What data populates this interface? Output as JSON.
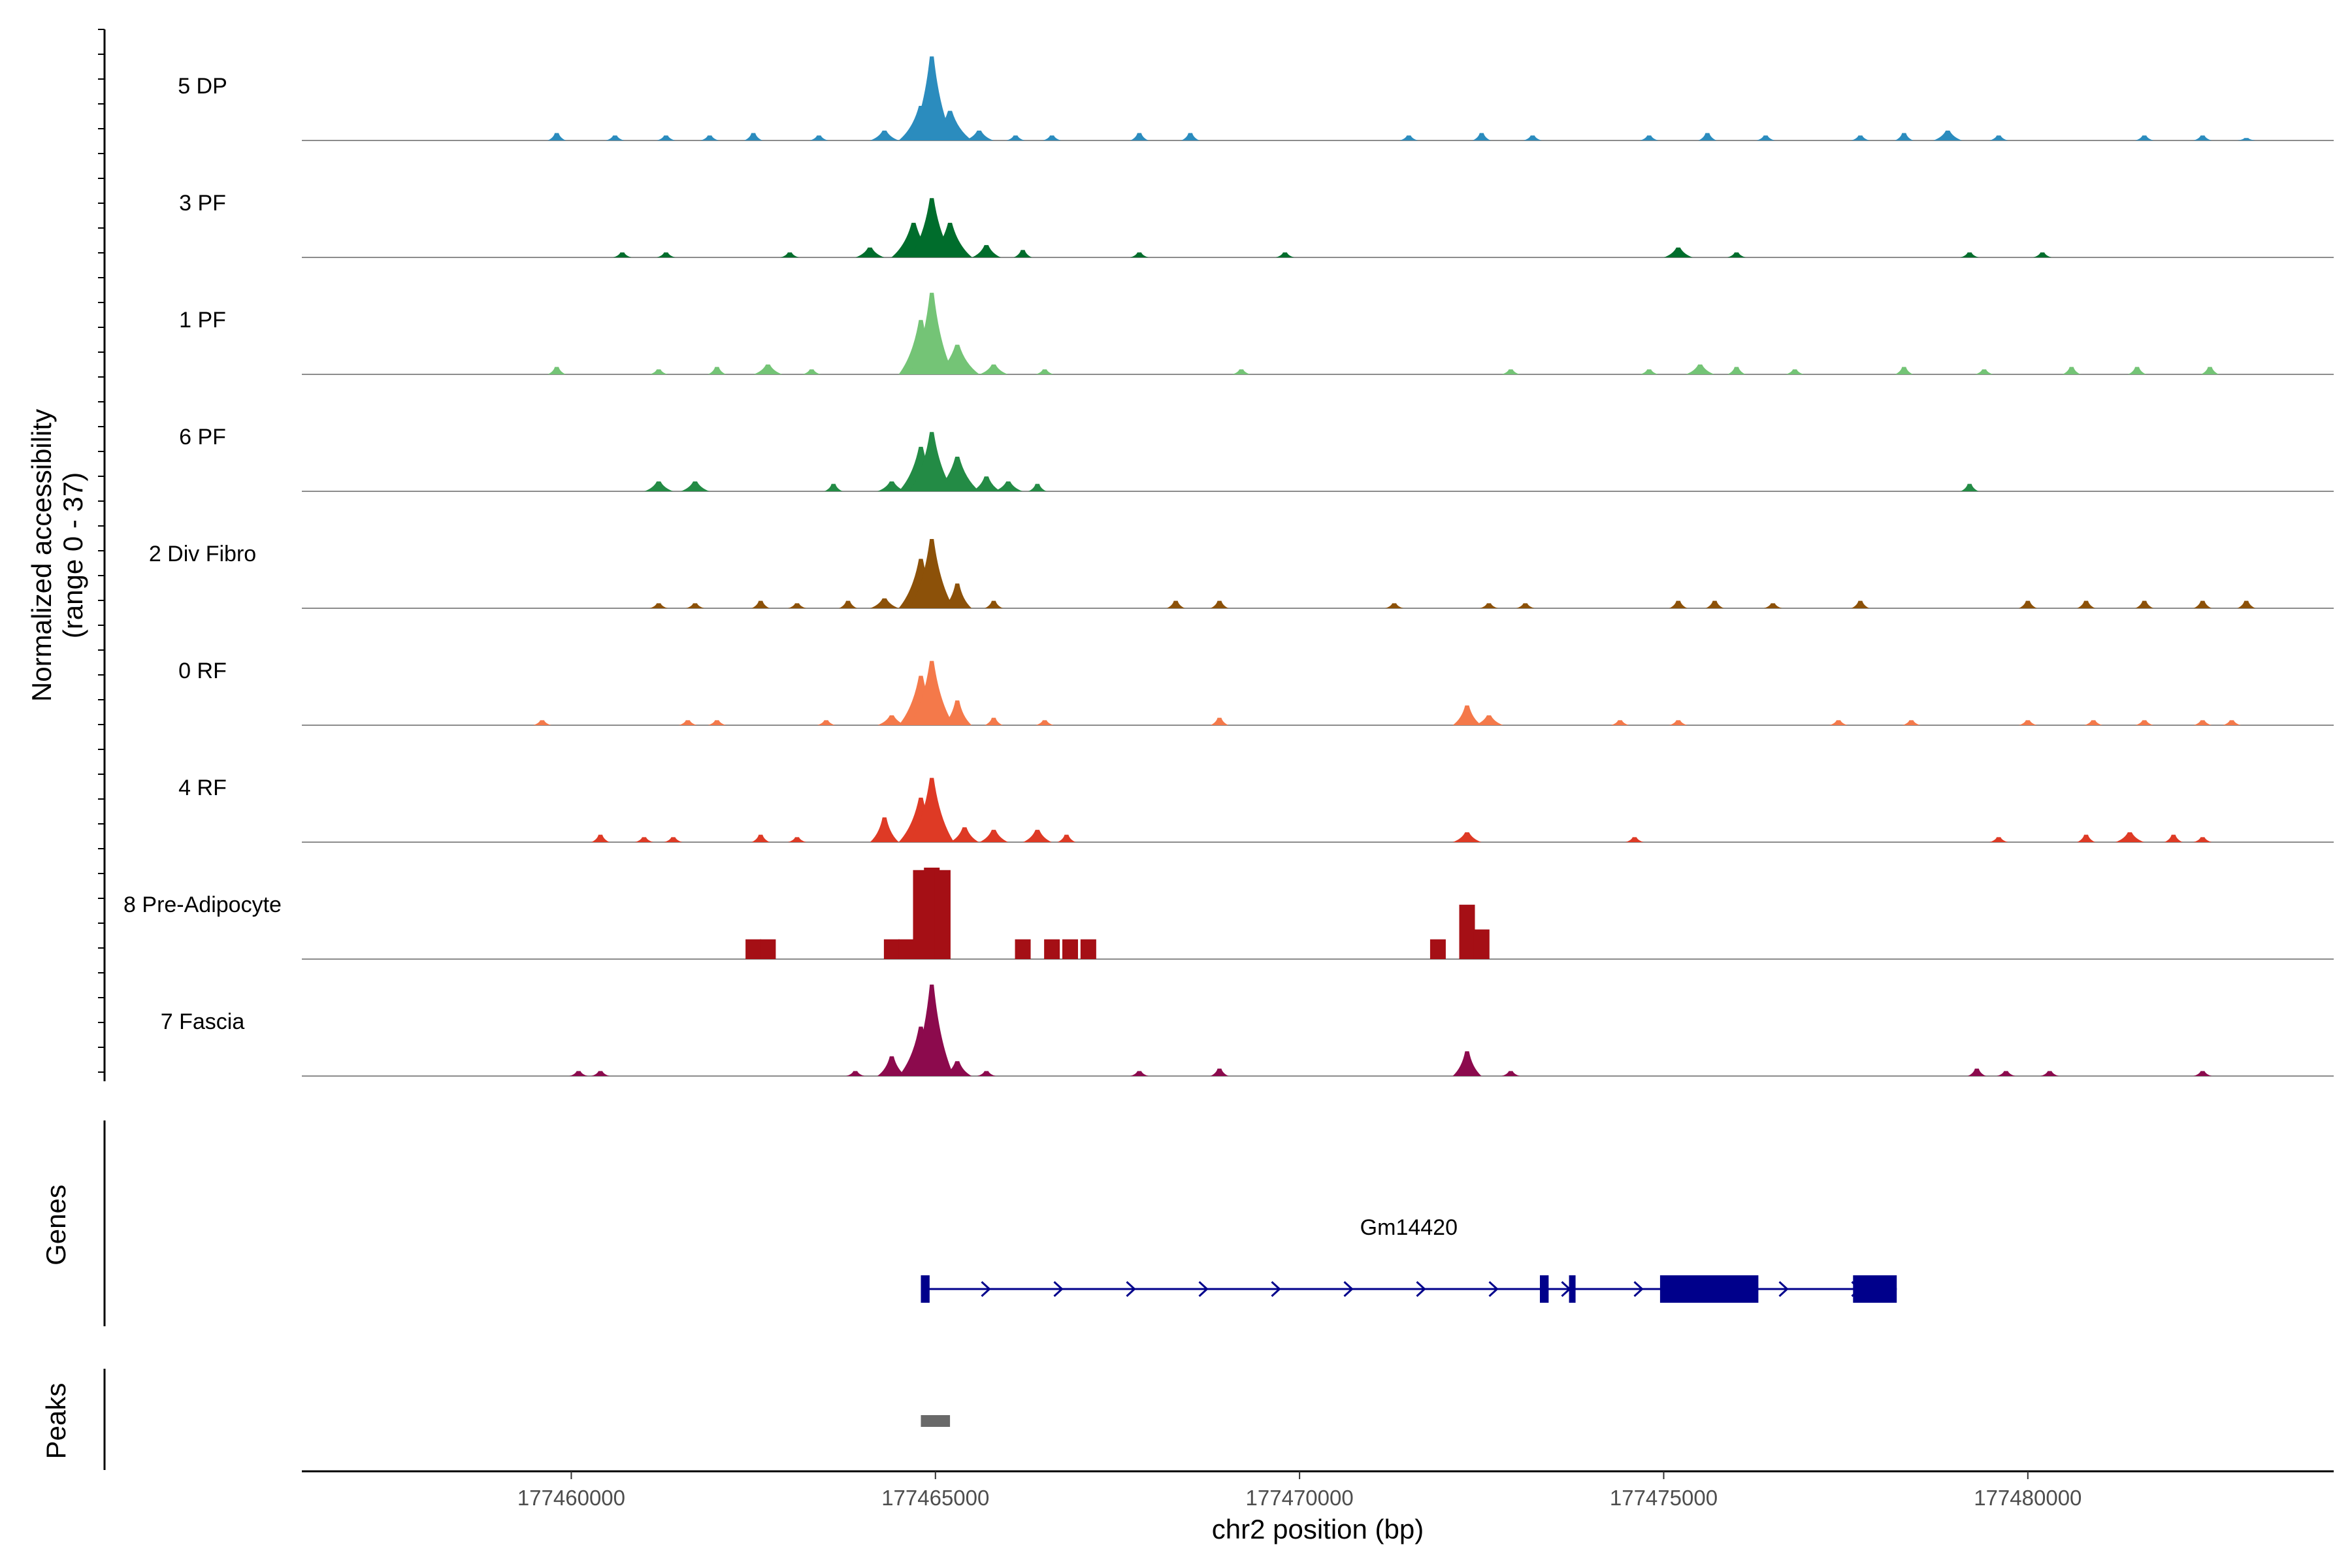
{
  "chart_data": {
    "type": "area",
    "title": "",
    "ylabel_line1": "Normalized accessibility",
    "ylabel_line2": "(range 0 - 37)",
    "xlabel": "chr2 position (bp)",
    "xlim": [
      177456300,
      177484200
    ],
    "ylim": [
      0,
      37
    ],
    "xticks": [
      177460000,
      177465000,
      177470000,
      177475000,
      177480000
    ],
    "xtick_labels": [
      "177460000",
      "177465000",
      "177470000",
      "177475000",
      "177480000"
    ],
    "grid": false,
    "series": [
      {
        "name": "5 DP",
        "color": "#2b8cbe",
        "peaks": [
          [
            177459800,
            3
          ],
          [
            177460600,
            2
          ],
          [
            177461300,
            2
          ],
          [
            177461900,
            2
          ],
          [
            177462500,
            3
          ],
          [
            177463400,
            2
          ],
          [
            177464300,
            4
          ],
          [
            177464800,
            14
          ],
          [
            177464950,
            34
          ],
          [
            177465200,
            12
          ],
          [
            177465600,
            4
          ],
          [
            177466100,
            2
          ],
          [
            177466600,
            2
          ],
          [
            177467800,
            3
          ],
          [
            177468500,
            3
          ],
          [
            177471500,
            2
          ],
          [
            177472500,
            3
          ],
          [
            177473200,
            2
          ],
          [
            177474800,
            2
          ],
          [
            177475600,
            3
          ],
          [
            177476400,
            2
          ],
          [
            177477700,
            2
          ],
          [
            177478300,
            3
          ],
          [
            177478900,
            4
          ],
          [
            177479600,
            2
          ],
          [
            177481600,
            2
          ],
          [
            177482400,
            2
          ],
          [
            177483000,
            1
          ]
        ]
      },
      {
        "name": "3 PF",
        "color": "#006d2c",
        "peaks": [
          [
            177460700,
            2
          ],
          [
            177461300,
            2
          ],
          [
            177463000,
            2
          ],
          [
            177464100,
            4
          ],
          [
            177464700,
            14
          ],
          [
            177464950,
            24
          ],
          [
            177465200,
            14
          ],
          [
            177465700,
            5
          ],
          [
            177466200,
            3
          ],
          [
            177467800,
            2
          ],
          [
            177469800,
            2
          ],
          [
            177475200,
            4
          ],
          [
            177476000,
            2
          ],
          [
            177479200,
            2
          ],
          [
            177480200,
            2
          ]
        ]
      },
      {
        "name": "1 PF",
        "color": "#74c476",
        "peaks": [
          [
            177459800,
            3
          ],
          [
            177461200,
            2
          ],
          [
            177462000,
            3
          ],
          [
            177462700,
            4
          ],
          [
            177463300,
            2
          ],
          [
            177464800,
            22
          ],
          [
            177464950,
            33
          ],
          [
            177465300,
            12
          ],
          [
            177465800,
            4
          ],
          [
            177466500,
            2
          ],
          [
            177469200,
            2
          ],
          [
            177472900,
            2
          ],
          [
            177474800,
            2
          ],
          [
            177475500,
            4
          ],
          [
            177476000,
            3
          ],
          [
            177476800,
            2
          ],
          [
            177478300,
            3
          ],
          [
            177479400,
            2
          ],
          [
            177480600,
            3
          ],
          [
            177481500,
            3
          ],
          [
            177482500,
            3
          ]
        ]
      },
      {
        "name": "6 PF",
        "color": "#238b45",
        "peaks": [
          [
            177461200,
            4
          ],
          [
            177461700,
            4
          ],
          [
            177463600,
            3
          ],
          [
            177464400,
            4
          ],
          [
            177464800,
            18
          ],
          [
            177464950,
            24
          ],
          [
            177465300,
            14
          ],
          [
            177465700,
            6
          ],
          [
            177466000,
            4
          ],
          [
            177466400,
            3
          ],
          [
            177479200,
            3
          ]
        ]
      },
      {
        "name": "2 Div Fibro",
        "color": "#8c5109",
        "peaks": [
          [
            177461200,
            2
          ],
          [
            177461700,
            2
          ],
          [
            177462600,
            3
          ],
          [
            177463100,
            2
          ],
          [
            177463800,
            3
          ],
          [
            177464300,
            4
          ],
          [
            177464800,
            20
          ],
          [
            177464950,
            28
          ],
          [
            177465300,
            10
          ],
          [
            177465800,
            3
          ],
          [
            177468300,
            3
          ],
          [
            177468900,
            3
          ],
          [
            177471300,
            2
          ],
          [
            177472600,
            2
          ],
          [
            177473100,
            2
          ],
          [
            177475200,
            3
          ],
          [
            177475700,
            3
          ],
          [
            177476500,
            2
          ],
          [
            177477700,
            3
          ],
          [
            177480000,
            3
          ],
          [
            177480800,
            3
          ],
          [
            177481600,
            3
          ],
          [
            177482400,
            3
          ],
          [
            177483000,
            3
          ]
        ]
      },
      {
        "name": "0 RF",
        "color": "#f4794a",
        "peaks": [
          [
            177459600,
            2
          ],
          [
            177461600,
            2
          ],
          [
            177462000,
            2
          ],
          [
            177463500,
            2
          ],
          [
            177464400,
            4
          ],
          [
            177464800,
            20
          ],
          [
            177464950,
            26
          ],
          [
            177465300,
            10
          ],
          [
            177465800,
            3
          ],
          [
            177466500,
            2
          ],
          [
            177468900,
            3
          ],
          [
            177472300,
            8
          ],
          [
            177472600,
            4
          ],
          [
            177474400,
            2
          ],
          [
            177475200,
            2
          ],
          [
            177477400,
            2
          ],
          [
            177478400,
            2
          ],
          [
            177480000,
            2
          ],
          [
            177480900,
            2
          ],
          [
            177481600,
            2
          ],
          [
            177482400,
            2
          ],
          [
            177482800,
            2
          ]
        ]
      },
      {
        "name": "4 RF",
        "color": "#de3a25",
        "peaks": [
          [
            177460400,
            3
          ],
          [
            177461000,
            2
          ],
          [
            177461400,
            2
          ],
          [
            177462600,
            3
          ],
          [
            177463100,
            2
          ],
          [
            177464300,
            10
          ],
          [
            177464800,
            18
          ],
          [
            177464950,
            26
          ],
          [
            177465400,
            6
          ],
          [
            177465800,
            5
          ],
          [
            177466400,
            5
          ],
          [
            177466800,
            3
          ],
          [
            177472300,
            4
          ],
          [
            177474600,
            2
          ],
          [
            177479600,
            2
          ],
          [
            177480800,
            3
          ],
          [
            177481400,
            4
          ],
          [
            177482000,
            3
          ],
          [
            177482400,
            2
          ]
        ]
      },
      {
        "name": "8 Pre-Adipocyte",
        "color": "#a50f15",
        "peaks": [
          [
            177462500,
            8
          ],
          [
            177462700,
            8
          ],
          [
            177464400,
            8
          ],
          [
            177464600,
            8
          ],
          [
            177464800,
            36
          ],
          [
            177464950,
            37
          ],
          [
            177465100,
            36
          ],
          [
            177466200,
            8
          ],
          [
            177466600,
            8
          ],
          [
            177466850,
            8
          ],
          [
            177467100,
            8
          ],
          [
            177471900,
            8
          ],
          [
            177472300,
            22
          ],
          [
            177472500,
            12
          ]
        ]
      },
      {
        "name": "7 Fascia",
        "color": "#8c0a4d",
        "peaks": [
          [
            177460100,
            2
          ],
          [
            177460400,
            2
          ],
          [
            177463900,
            2
          ],
          [
            177464400,
            8
          ],
          [
            177464800,
            20
          ],
          [
            177464950,
            37
          ],
          [
            177465300,
            6
          ],
          [
            177465700,
            2
          ],
          [
            177467800,
            2
          ],
          [
            177468900,
            3
          ],
          [
            177472300,
            10
          ],
          [
            177472900,
            2
          ],
          [
            177479300,
            3
          ],
          [
            177479700,
            2
          ],
          [
            177480300,
            2
          ],
          [
            177482400,
            2
          ]
        ]
      }
    ],
    "genes": {
      "label": "Genes",
      "name": "Gm14420",
      "strand": "+",
      "start": 177464800,
      "end": 177478200,
      "exons": [
        [
          177464800,
          177464920
        ],
        [
          177473300,
          177473420
        ],
        [
          177473700,
          177473760
        ],
        [
          177474950,
          177476300
        ],
        [
          177477600,
          177478200
        ]
      ]
    },
    "peaks_track": {
      "label": "Peaks",
      "regions": [
        [
          177464800,
          177465200
        ]
      ],
      "color": "#696969"
    }
  }
}
